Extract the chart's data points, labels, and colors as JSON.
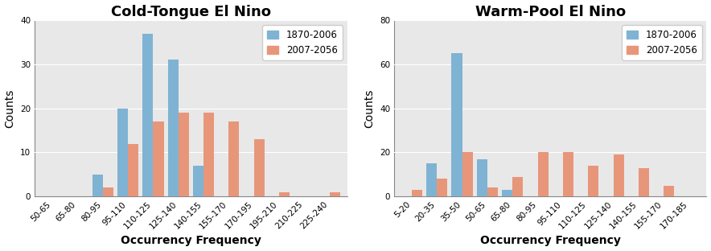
{
  "left": {
    "title": "Cold-Tongue El Nino",
    "xlabel": "Occurrency Frequency",
    "ylabel": "Counts",
    "categories": [
      "50-65",
      "65-80",
      "80-95",
      "95-110",
      "110-125",
      "125-140",
      "140-155",
      "155-170",
      "170-195",
      "195-210",
      "210-225",
      "225-240"
    ],
    "blue_values": [
      0,
      0,
      5,
      20,
      37,
      31,
      7,
      0,
      0,
      0,
      0,
      0
    ],
    "red_values": [
      0,
      0,
      2,
      12,
      17,
      19,
      19,
      17,
      13,
      1,
      0,
      1
    ],
    "ylim": [
      0,
      40
    ],
    "yticks": [
      0,
      10,
      20,
      30,
      40
    ]
  },
  "right": {
    "title": "Warm-Pool El Nino",
    "xlabel": "Occurrency Frequency",
    "ylabel": "Counts",
    "categories": [
      "5-20",
      "20-35",
      "35-50",
      "50-65",
      "65-80",
      "80-95",
      "95-110",
      "110-125",
      "125-140",
      "140-155",
      "155-170",
      "170-185"
    ],
    "blue_values": [
      0,
      15,
      65,
      17,
      3,
      0,
      0,
      0,
      0,
      0,
      0,
      0
    ],
    "red_values": [
      3,
      8,
      20,
      4,
      9,
      20,
      20,
      14,
      19,
      13,
      5,
      0
    ],
    "ylim": [
      0,
      80
    ],
    "yticks": [
      0,
      20,
      40,
      60,
      80
    ]
  },
  "blue_color": "#7fb3d3",
  "red_color": "#e8967a",
  "legend_blue": "1870-2006",
  "legend_red": "2007-2056",
  "title_fontsize": 13,
  "label_fontsize": 10,
  "tick_fontsize": 7.5,
  "legend_fontsize": 8.5,
  "bar_width": 0.42,
  "bg_color": "#e8e8e8",
  "grid_color": "#ffffff",
  "fig_bg": "#ffffff"
}
